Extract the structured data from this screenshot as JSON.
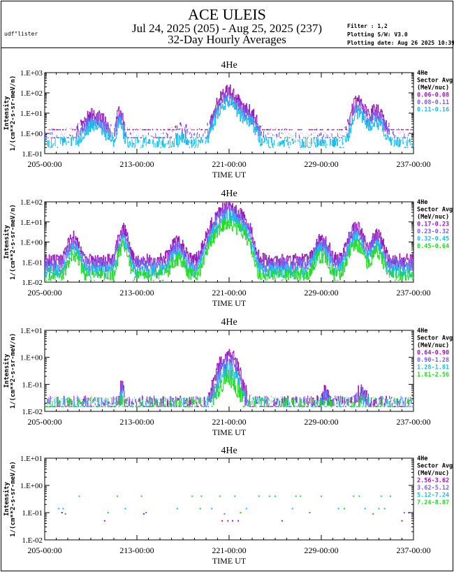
{
  "header": {
    "title": "ACE ULEIS",
    "date_range": "Jul 24, 2025 (205) - Aug 25, 2025 (237)",
    "subtitle": "32-Day Hourly Averages",
    "user": "udf°lister",
    "filter": "Filter : 1,2",
    "software": "Plotting S/W: V3.0",
    "plot_date": "Plotting date: Aug 26 2025 10:39"
  },
  "colors": {
    "magenta": "#9a18b8",
    "violet": "#7a5cf0",
    "cyan": "#18bcee",
    "green": "#22dd22"
  },
  "chart_data": [
    {
      "type": "line",
      "title": "4He",
      "xlabel": "TIME UT",
      "ylabel": "Intensity",
      "ylabel2": "1/(cm**2-s-sr-meV/n)",
      "yscale": "log",
      "ylim": [
        0.1,
        1000
      ],
      "xlim": [
        205,
        237
      ],
      "xticks": [
        205,
        213,
        221,
        229,
        237
      ],
      "xtick_labels": [
        "205-00:00",
        "213-00:00",
        "221-00:00",
        "229-00:00",
        "237-00:00"
      ],
      "ytick_labels": [
        "1.E-01",
        "1.E+00",
        "1.E+01",
        "1.E+02",
        "1.E+03"
      ],
      "legend_title": [
        "4He",
        "Sector Avg",
        "(MeV/nuc)"
      ],
      "series": [
        {
          "name": "0.06-0.08",
          "color": "#9a18b8",
          "base": 0.8,
          "floor": 1.5,
          "dy": 5
        },
        {
          "name": "0.08-0.11",
          "color": "#7a5cf0",
          "base": 0.5,
          "floor": 0.6,
          "dy": 2
        },
        {
          "name": "0.11-0.16",
          "color": "#18bcee",
          "base": 0.3,
          "floor": 0.2,
          "dy": -2
        }
      ],
      "events": [
        [
          209.3,
          0.9,
          8
        ],
        [
          211.5,
          0.3,
          10
        ],
        [
          216.8,
          0.6,
          0.8
        ],
        [
          220.9,
          0.8,
          120
        ],
        [
          222.5,
          0.7,
          15
        ],
        [
          232.2,
          0.5,
          40
        ],
        [
          233.7,
          0.7,
          12
        ]
      ]
    },
    {
      "type": "line",
      "title": "4He",
      "xlabel": "TIME UT",
      "ylabel": "Intensity",
      "ylabel2": "1/(cm**2-s-sr-meV/n)",
      "yscale": "log",
      "ylim": [
        0.01,
        100
      ],
      "xlim": [
        205,
        237
      ],
      "xticks": [
        205,
        213,
        221,
        229,
        237
      ],
      "xtick_labels": [
        "205-00:00",
        "213-00:00",
        "221-00:00",
        "229-00:00",
        "237-00:00"
      ],
      "ytick_labels": [
        "1.E-02",
        "1.E-01",
        "1.E+00",
        "1.E+01",
        "1.E+02"
      ],
      "legend_title": [
        "4He",
        "Sector Avg",
        "(MeV/nuc)"
      ],
      "series": [
        {
          "name": "0.17-0.23",
          "color": "#9a18b8",
          "base": 0.12,
          "floor": 0.025,
          "dy": 4
        },
        {
          "name": "0.23-0.32",
          "color": "#7a5cf0",
          "base": 0.07,
          "floor": 0.02,
          "dy": 1
        },
        {
          "name": "0.32-0.45",
          "color": "#18bcee",
          "base": 0.035,
          "floor": 0.015,
          "dy": -2
        },
        {
          "name": "0.45-0.64",
          "color": "#22dd22",
          "base": 0.02,
          "floor": 0.012,
          "dy": -5
        }
      ],
      "events": [
        [
          207.5,
          0.5,
          1.5
        ],
        [
          211.8,
          0.4,
          4
        ],
        [
          216.5,
          0.6,
          0.8
        ],
        [
          220.9,
          1.0,
          60
        ],
        [
          222.3,
          0.5,
          8
        ],
        [
          229.0,
          0.6,
          1.2
        ],
        [
          232.0,
          0.6,
          5
        ],
        [
          233.8,
          0.5,
          2
        ]
      ]
    },
    {
      "type": "line",
      "title": "4He",
      "xlabel": "TIME UT",
      "ylabel": "Intensity",
      "ylabel2": "1/(cm**2-s-sr-meV/n)",
      "yscale": "log",
      "ylim": [
        0.01,
        10
      ],
      "xlim": [
        205,
        237
      ],
      "xticks": [
        205,
        213,
        221,
        229,
        237
      ],
      "xtick_labels": [
        "205-00:00",
        "213-00:00",
        "221-00:00",
        "229-00:00",
        "237-00:00"
      ],
      "ytick_labels": [
        "1.E-02",
        "1.E-01",
        "1.E+00",
        "1.E+01"
      ],
      "legend_title": [
        "4He",
        "Sector Avg",
        "(MeV/nuc)"
      ],
      "series": [
        {
          "name": "0.64-0.90",
          "color": "#9a18b8",
          "base": 0.017,
          "floor": 0.015,
          "dy": 4
        },
        {
          "name": "0.90-1.28",
          "color": "#7a5cf0",
          "base": 0.016,
          "floor": 0.015,
          "dy": 2
        },
        {
          "name": "1.28-1.81",
          "color": "#18bcee",
          "base": 0.015,
          "floor": 0.015,
          "dy": 0
        },
        {
          "name": "1.81-2.56",
          "color": "#22dd22",
          "base": 0.015,
          "floor": 0.015,
          "dy": -1
        }
      ],
      "events": [
        [
          211.7,
          0.15,
          0.08
        ],
        [
          220.9,
          0.8,
          1.1
        ],
        [
          229.3,
          0.3,
          0.03
        ],
        [
          232.5,
          0.4,
          0.04
        ]
      ]
    },
    {
      "type": "scatter",
      "title": "4He",
      "xlabel": "TIME UT",
      "ylabel": "Intensity",
      "ylabel2": "1/(cm**2-s-sr-meV/n)",
      "yscale": "log",
      "ylim": [
        0.01,
        10
      ],
      "xlim": [
        205,
        237
      ],
      "xticks": [
        205,
        213,
        221,
        229,
        237
      ],
      "xtick_labels": [
        "205-00:00",
        "213-00:00",
        "221-00:00",
        "229-00:00",
        "237-00:00"
      ],
      "ytick_labels": [
        "1.E-02",
        "1.E-01",
        "1.E+00",
        "1.E+01"
      ],
      "legend_title": [
        "4He",
        "Sector Avg",
        "(MeV/nuc)"
      ],
      "series": [
        {
          "name": "2.56-3.62",
          "color": "#9a18b8",
          "points": [
            [
              206.5,
              0.1
            ],
            [
              210.2,
              0.05
            ],
            [
              213.6,
              0.09
            ],
            [
              220.4,
              0.05
            ],
            [
              220.9,
              0.05
            ],
            [
              221.3,
              0.05
            ],
            [
              221.8,
              0.05
            ],
            [
              225.6,
              0.05
            ],
            [
              236.0,
              0.05
            ],
            [
              236.6,
              0.1
            ]
          ]
        },
        {
          "name": "3.62-5.12",
          "color": "#7a5cf0",
          "points": [
            [
              206.8,
              0.09
            ],
            [
              213.8,
              0.1
            ],
            [
              220.6,
              0.09
            ],
            [
              228.0,
              0.1
            ],
            [
              233.5,
              0.09
            ],
            [
              236.2,
              0.1
            ]
          ]
        },
        {
          "name": "5.12-7.24",
          "color": "#18bcee",
          "points": [
            [
              206.2,
              0.14
            ],
            [
              206.6,
              0.14
            ],
            [
              212.0,
              0.14
            ],
            [
              216.5,
              0.14
            ],
            [
              219.5,
              0.14
            ],
            [
              222.5,
              0.14
            ],
            [
              226.5,
              0.14
            ],
            [
              230.5,
              0.14
            ],
            [
              232.8,
              0.14
            ],
            [
              234.5,
              0.14
            ]
          ]
        },
        {
          "name": "7.24-8.87",
          "color": "#22dd22",
          "points": [
            [
              208.0,
              0.4
            ],
            [
              211.3,
              0.4
            ],
            [
              213.4,
              0.4
            ],
            [
              217.8,
              0.4
            ],
            [
              218.6,
              0.4
            ],
            [
              220.2,
              0.4
            ],
            [
              221.5,
              0.4
            ],
            [
              223.6,
              0.4
            ],
            [
              224.5,
              0.4
            ],
            [
              225.0,
              0.4
            ],
            [
              226.8,
              0.4
            ],
            [
              227.2,
              0.4
            ],
            [
              229.0,
              0.4
            ],
            [
              231.8,
              0.4
            ],
            [
              232.3,
              0.4
            ],
            [
              234.2,
              0.4
            ],
            [
              235.0,
              0.4
            ],
            [
              237.0,
              0.4
            ],
            [
              210.5,
              0.1
            ],
            [
              218.5,
              0.14
            ],
            [
              222.0,
              0.1
            ],
            [
              231.0,
              0.14
            ],
            [
              234.0,
              0.14
            ]
          ]
        }
      ]
    }
  ]
}
